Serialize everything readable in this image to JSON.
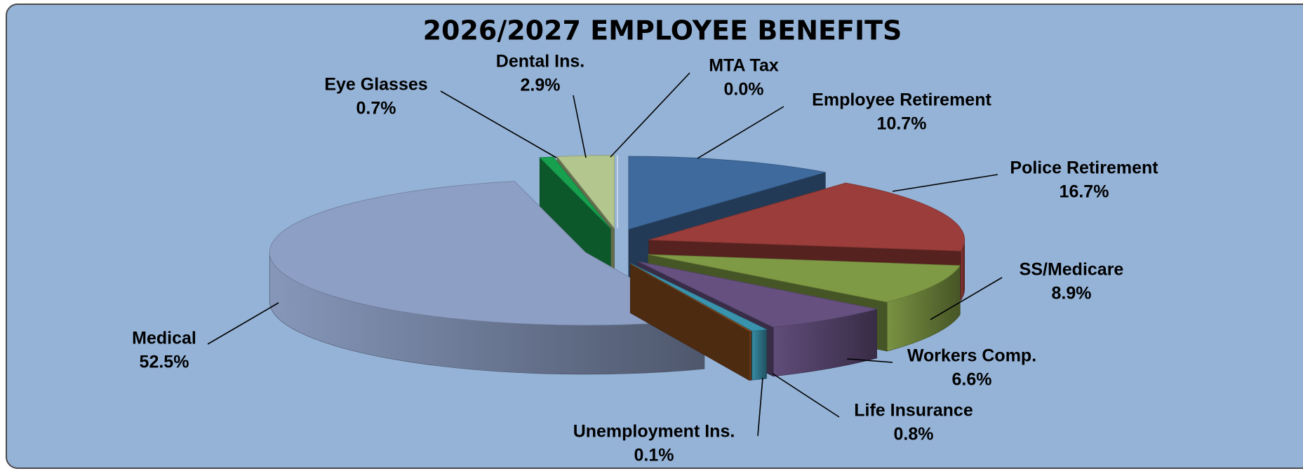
{
  "chart_data": {
    "type": "pie3d",
    "title": "2026/2027 EMPLOYEE BENEFITS",
    "categories": [
      "MTA Tax",
      "Employee Retirement",
      "Police Retirement",
      "SS/Medicare",
      "Workers Comp.",
      "Life Insurance",
      "Unemployment Ins.",
      "Medical",
      "Eye Glasses",
      "Dental Ins."
    ],
    "values": [
      0.0,
      10.7,
      16.7,
      8.9,
      6.6,
      0.8,
      0.1,
      52.5,
      0.7,
      2.9
    ],
    "value_labels": [
      "0.0%",
      "10.7%",
      "16.7%",
      "8.9%",
      "6.6%",
      "0.8%",
      "0.1%",
      "52.5%",
      "0.7%",
      "2.9%"
    ],
    "colors": [
      "#c9d5e6",
      "#3e6a9d",
      "#9b3d3a",
      "#7f9a45",
      "#65507f",
      "#3a93ad",
      "#8b4e1f",
      "#8d9fc4",
      "#17a04e",
      "#b3c68d"
    ]
  }
}
